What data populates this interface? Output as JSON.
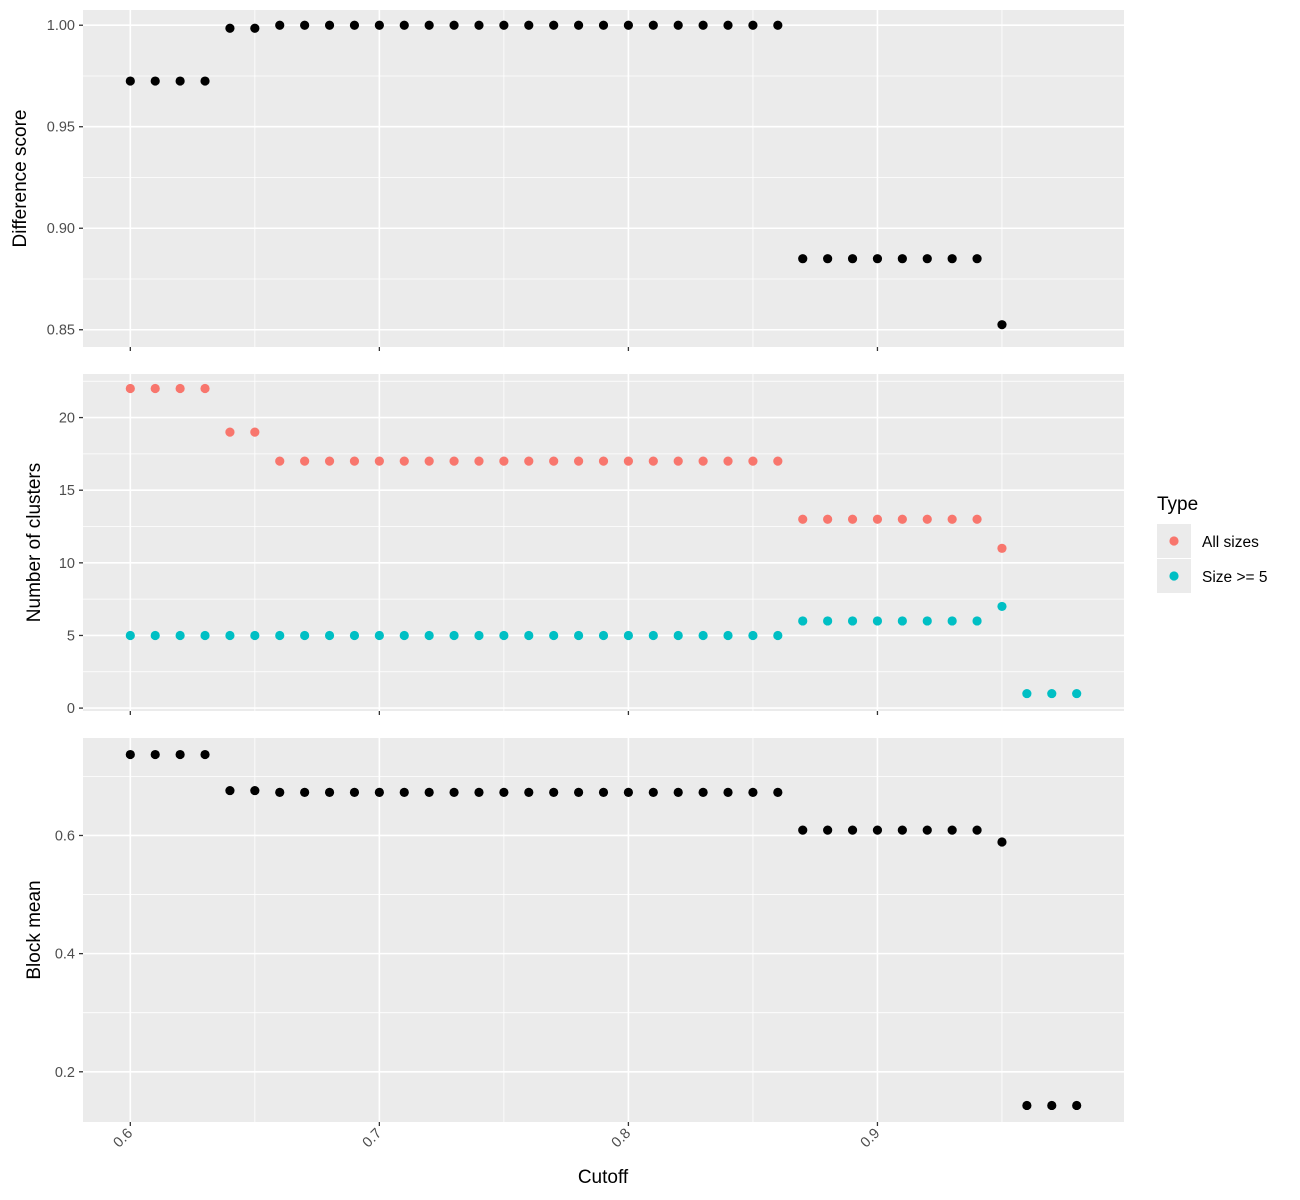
{
  "chart_data": [
    {
      "type": "scatter",
      "ylabel": "Difference score",
      "xlabel": "",
      "xlim": [
        0.581,
        0.999
      ],
      "ylim": [
        0.8415,
        1.0075
      ],
      "x_ticks": [
        0.6,
        0.7,
        0.8,
        0.9
      ],
      "y_ticks": [
        0.85,
        0.9,
        0.95,
        1.0
      ],
      "y_tick_labels": [
        "0.85",
        "0.90",
        "0.95",
        "1.00"
      ],
      "grid": true,
      "series": [
        {
          "color": "#000000",
          "points": [
            [
              0.6,
              0.9725
            ],
            [
              0.61,
              0.9725
            ],
            [
              0.62,
              0.9725
            ],
            [
              0.63,
              0.9725
            ],
            [
              0.64,
              0.9985
            ],
            [
              0.65,
              0.9985
            ],
            [
              0.66,
              1.0
            ],
            [
              0.67,
              1.0
            ],
            [
              0.68,
              1.0
            ],
            [
              0.69,
              1.0
            ],
            [
              0.7,
              1.0
            ],
            [
              0.71,
              1.0
            ],
            [
              0.72,
              1.0
            ],
            [
              0.73,
              1.0
            ],
            [
              0.74,
              1.0
            ],
            [
              0.75,
              1.0
            ],
            [
              0.76,
              1.0
            ],
            [
              0.77,
              1.0
            ],
            [
              0.78,
              1.0
            ],
            [
              0.79,
              1.0
            ],
            [
              0.8,
              1.0
            ],
            [
              0.81,
              1.0
            ],
            [
              0.82,
              1.0
            ],
            [
              0.83,
              1.0
            ],
            [
              0.84,
              1.0
            ],
            [
              0.85,
              1.0
            ],
            [
              0.86,
              1.0
            ],
            [
              0.87,
              0.885
            ],
            [
              0.88,
              0.885
            ],
            [
              0.89,
              0.885
            ],
            [
              0.9,
              0.885
            ],
            [
              0.91,
              0.885
            ],
            [
              0.92,
              0.885
            ],
            [
              0.93,
              0.885
            ],
            [
              0.94,
              0.885
            ],
            [
              0.95,
              0.8525
            ]
          ]
        }
      ]
    },
    {
      "type": "scatter",
      "ylabel": "Number of clusters",
      "xlabel": "",
      "xlim": [
        0.581,
        0.999
      ],
      "ylim": [
        -0.2,
        23.0
      ],
      "x_ticks": [
        0.6,
        0.7,
        0.8,
        0.9
      ],
      "y_ticks": [
        0,
        5,
        10,
        15,
        20
      ],
      "y_tick_labels": [
        "0",
        "5",
        "10",
        "15",
        "20"
      ],
      "grid": true,
      "legend": {
        "title": "Type",
        "position": "right",
        "entries": [
          {
            "label": "All sizes",
            "color": "#F8766D"
          },
          {
            "label": "Size >= 5",
            "color": "#00BFC4"
          }
        ]
      },
      "series": [
        {
          "name": "All sizes",
          "color": "#F8766D",
          "points": [
            [
              0.6,
              22
            ],
            [
              0.61,
              22
            ],
            [
              0.62,
              22
            ],
            [
              0.63,
              22
            ],
            [
              0.64,
              19
            ],
            [
              0.65,
              19
            ],
            [
              0.66,
              17
            ],
            [
              0.67,
              17
            ],
            [
              0.68,
              17
            ],
            [
              0.69,
              17
            ],
            [
              0.7,
              17
            ],
            [
              0.71,
              17
            ],
            [
              0.72,
              17
            ],
            [
              0.73,
              17
            ],
            [
              0.74,
              17
            ],
            [
              0.75,
              17
            ],
            [
              0.76,
              17
            ],
            [
              0.77,
              17
            ],
            [
              0.78,
              17
            ],
            [
              0.79,
              17
            ],
            [
              0.8,
              17
            ],
            [
              0.81,
              17
            ],
            [
              0.82,
              17
            ],
            [
              0.83,
              17
            ],
            [
              0.84,
              17
            ],
            [
              0.85,
              17
            ],
            [
              0.86,
              17
            ],
            [
              0.87,
              13
            ],
            [
              0.88,
              13
            ],
            [
              0.89,
              13
            ],
            [
              0.9,
              13
            ],
            [
              0.91,
              13
            ],
            [
              0.92,
              13
            ],
            [
              0.93,
              13
            ],
            [
              0.94,
              13
            ],
            [
              0.95,
              11
            ]
          ]
        },
        {
          "name": "Size >= 5",
          "color": "#00BFC4",
          "points": [
            [
              0.6,
              5
            ],
            [
              0.61,
              5
            ],
            [
              0.62,
              5
            ],
            [
              0.63,
              5
            ],
            [
              0.64,
              5
            ],
            [
              0.65,
              5
            ],
            [
              0.66,
              5
            ],
            [
              0.67,
              5
            ],
            [
              0.68,
              5
            ],
            [
              0.69,
              5
            ],
            [
              0.7,
              5
            ],
            [
              0.71,
              5
            ],
            [
              0.72,
              5
            ],
            [
              0.73,
              5
            ],
            [
              0.74,
              5
            ],
            [
              0.75,
              5
            ],
            [
              0.76,
              5
            ],
            [
              0.77,
              5
            ],
            [
              0.78,
              5
            ],
            [
              0.79,
              5
            ],
            [
              0.8,
              5
            ],
            [
              0.81,
              5
            ],
            [
              0.82,
              5
            ],
            [
              0.83,
              5
            ],
            [
              0.84,
              5
            ],
            [
              0.85,
              5
            ],
            [
              0.86,
              5
            ],
            [
              0.87,
              6
            ],
            [
              0.88,
              6
            ],
            [
              0.89,
              6
            ],
            [
              0.9,
              6
            ],
            [
              0.91,
              6
            ],
            [
              0.92,
              6
            ],
            [
              0.93,
              6
            ],
            [
              0.94,
              6
            ],
            [
              0.95,
              7
            ],
            [
              0.96,
              1
            ],
            [
              0.97,
              1
            ],
            [
              0.98,
              1
            ]
          ]
        }
      ]
    },
    {
      "type": "scatter",
      "ylabel": "Block mean",
      "xlabel": "Cutoff",
      "xlim": [
        0.581,
        0.999
      ],
      "ylim": [
        0.115,
        0.765
      ],
      "x_ticks": [
        0.6,
        0.7,
        0.8,
        0.9
      ],
      "x_tick_labels": [
        "0.6",
        "0.7",
        "0.8",
        "0.9"
      ],
      "x_tick_rotation": -45,
      "y_ticks": [
        0.2,
        0.4,
        0.6
      ],
      "y_tick_labels": [
        "0.2",
        "0.4",
        "0.6"
      ],
      "grid": true,
      "series": [
        {
          "color": "#000000",
          "points": [
            [
              0.6,
              0.737
            ],
            [
              0.61,
              0.737
            ],
            [
              0.62,
              0.737
            ],
            [
              0.63,
              0.737
            ],
            [
              0.64,
              0.676
            ],
            [
              0.65,
              0.676
            ],
            [
              0.66,
              0.673
            ],
            [
              0.67,
              0.673
            ],
            [
              0.68,
              0.673
            ],
            [
              0.69,
              0.673
            ],
            [
              0.7,
              0.673
            ],
            [
              0.71,
              0.673
            ],
            [
              0.72,
              0.673
            ],
            [
              0.73,
              0.673
            ],
            [
              0.74,
              0.673
            ],
            [
              0.75,
              0.673
            ],
            [
              0.76,
              0.673
            ],
            [
              0.77,
              0.673
            ],
            [
              0.78,
              0.673
            ],
            [
              0.79,
              0.673
            ],
            [
              0.8,
              0.673
            ],
            [
              0.81,
              0.673
            ],
            [
              0.82,
              0.673
            ],
            [
              0.83,
              0.673
            ],
            [
              0.84,
              0.673
            ],
            [
              0.85,
              0.673
            ],
            [
              0.86,
              0.673
            ],
            [
              0.87,
              0.609
            ],
            [
              0.88,
              0.609
            ],
            [
              0.89,
              0.609
            ],
            [
              0.9,
              0.609
            ],
            [
              0.91,
              0.609
            ],
            [
              0.92,
              0.609
            ],
            [
              0.93,
              0.609
            ],
            [
              0.94,
              0.609
            ],
            [
              0.95,
              0.589
            ],
            [
              0.96,
              0.143
            ],
            [
              0.97,
              0.143
            ],
            [
              0.98,
              0.143
            ]
          ]
        }
      ]
    }
  ]
}
